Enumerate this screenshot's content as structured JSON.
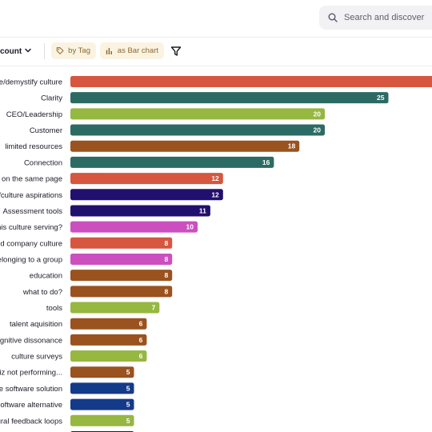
{
  "search": {
    "placeholder": "Search and discover"
  },
  "toolbar": {
    "count_label": "count",
    "group_chip": "by Tag",
    "view_chip": "as Bar chart"
  },
  "colors": {
    "orange_red": "#d65640",
    "teal": "#2c6b63",
    "lime": "#96b740",
    "brown": "#9a521e",
    "indigo": "#22106e",
    "magenta": "#cc4fbf",
    "navy": "#143a8a"
  },
  "chart_data": {
    "type": "bar",
    "orientation": "horizontal",
    "categories": [
      "e/demystify culture",
      "Clarity",
      "CEO/Leadership",
      "Customer",
      "limited resources",
      "Connection",
      "e on the same page",
      "/culture aspirations",
      "Assessment tools",
      "his culture serving?",
      "d company culture",
      "elonging to a group",
      "education",
      "what to do?",
      "tools",
      "talent aquisition",
      "gnitive dissonance",
      "culture surveys",
      "iz not performing...",
      "e software solution",
      "oftware alternative",
      "ural feedback loops",
      ""
    ],
    "values": [
      34,
      25,
      20,
      20,
      18,
      16,
      12,
      12,
      11,
      10,
      8,
      8,
      8,
      8,
      7,
      6,
      6,
      6,
      5,
      5,
      5,
      5,
      5
    ],
    "value_labels": [
      "",
      "25",
      "20",
      "20",
      "18",
      "16",
      "12",
      "12",
      "11",
      "10",
      "8",
      "8",
      "8",
      "8",
      "7",
      "6",
      "6",
      "6",
      "5",
      "5",
      "5",
      "5",
      ""
    ],
    "bar_colors": [
      "orange_red",
      "teal",
      "lime",
      "teal",
      "brown",
      "teal",
      "orange_red",
      "indigo",
      "indigo",
      "magenta",
      "orange_red",
      "magenta",
      "brown",
      "brown",
      "lime",
      "brown",
      "brown",
      "lime",
      "brown",
      "navy",
      "navy",
      "lime",
      "indigo"
    ],
    "xlim": [
      0,
      34
    ],
    "grid": false,
    "legend": "none"
  }
}
